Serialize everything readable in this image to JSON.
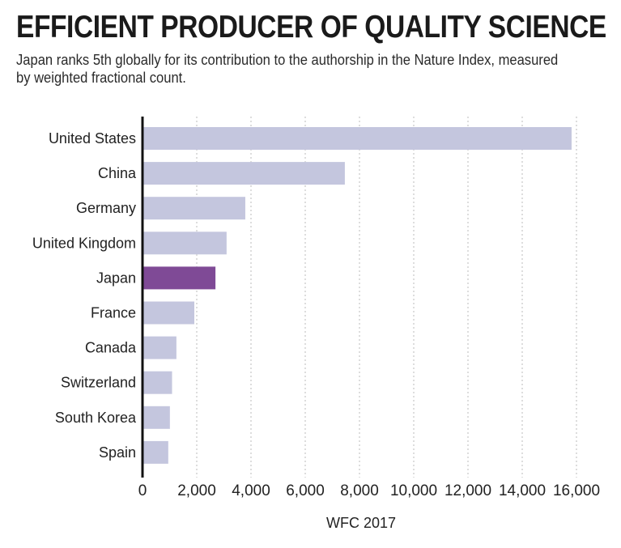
{
  "chart_data": {
    "type": "bar",
    "orientation": "horizontal",
    "title": "EFFICIENT PRODUCER OF QUALITY SCIENCE",
    "subtitle": "Japan ranks 5th globally for its contribution to the authorship in the Nature Index, measured by weighted fractional count.",
    "xlabel": "WFC 2017",
    "ylabel": "",
    "categories": [
      "United States",
      "China",
      "Germany",
      "United Kingdom",
      "Japan",
      "France",
      "Canada",
      "Switzerland",
      "South Korea",
      "Spain"
    ],
    "values": [
      15820,
      7460,
      3790,
      3100,
      2690,
      1910,
      1250,
      1090,
      1010,
      950
    ],
    "highlight": "Japan",
    "xlim": [
      0,
      16000
    ],
    "xticks": [
      0,
      2000,
      4000,
      6000,
      8000,
      10000,
      12000,
      14000,
      16000
    ],
    "xtick_labels": [
      "0",
      "2,000",
      "4,000",
      "6,000",
      "8,000",
      "10,000",
      "12,000",
      "14,000",
      "16,000"
    ],
    "grid": "vertical dotted",
    "colors": {
      "default": "#c4c6de",
      "highlight": "#7f4a96",
      "axis": "#111111",
      "grid": "#bbbbbb"
    }
  }
}
